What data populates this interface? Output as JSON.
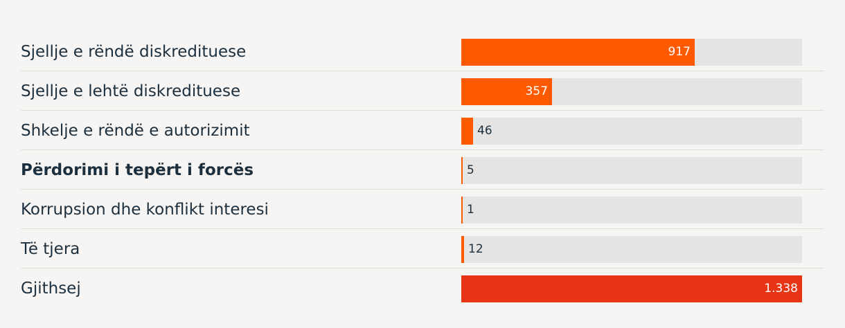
{
  "chart_data": {
    "type": "bar",
    "orientation": "horizontal",
    "categories": [
      "Sjellje e rëndë diskredituese",
      "Sjellje e lehtë diskredituese",
      "Shkelje e rëndë e autorizimit",
      "Përdorimi i tepërt i forcës",
      "Korrupsion dhe konflikt interesi",
      "Të tjera",
      "Gjithsej"
    ],
    "values": [
      917,
      357,
      46,
      5,
      1,
      12,
      1338
    ],
    "value_labels": [
      "917",
      "357",
      "46",
      "5",
      "1",
      "12",
      "1.338"
    ],
    "bold_categories": [
      "Përdorimi i tepërt i forcës"
    ],
    "xlim": [
      0,
      1338
    ],
    "grid": false,
    "legend": "none",
    "colors": {
      "bar": "#ff5a00",
      "total_bar": "#e83516",
      "track": "#e6e4e2",
      "background": "#f7f5f3",
      "text": "#1c2f3e",
      "divider": "#e0dcd8"
    }
  }
}
